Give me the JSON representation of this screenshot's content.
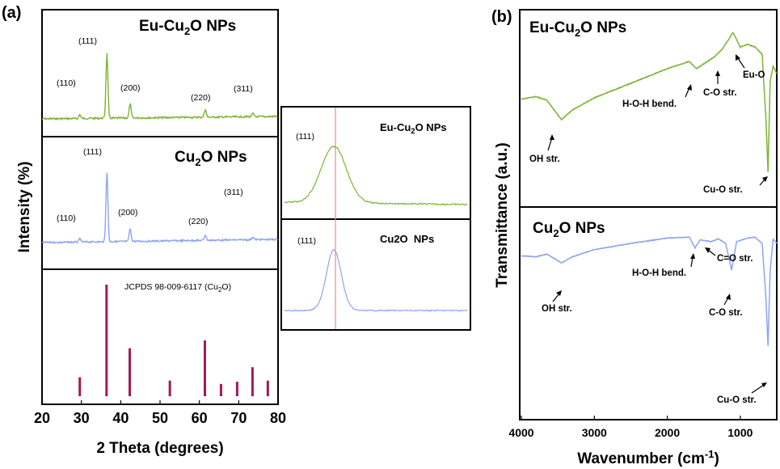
{
  "panel_labels": {
    "a": "(a)",
    "b": "(b)"
  },
  "colors": {
    "green": "#7fb336",
    "blue": "#8ea4f1",
    "stick": "#a01a5a",
    "ref_line": "#f08a8a"
  },
  "chart_data": [
    {
      "type": "line",
      "panel": "a",
      "xlabel": "2 Theta (degrees)",
      "ylabel": "Intensity (%)",
      "xlim": [
        20,
        80
      ],
      "xticks": [
        20,
        30,
        40,
        50,
        60,
        70,
        80
      ],
      "grid": false,
      "series": [
        {
          "name": "Eu-Cu2O NPs",
          "color": "#7fb336",
          "peaks": [
            [
              29.6,
              0.06
            ],
            [
              36.5,
              1.0
            ],
            [
              42.4,
              0.22
            ],
            [
              61.5,
              0.12
            ],
            [
              73.6,
              0.05
            ]
          ],
          "labels": [
            "(110)",
            "(111)",
            "(200)",
            "(220)",
            "(311)"
          ]
        },
        {
          "name": "Cu2O NPs",
          "color": "#8ea4f1",
          "peaks": [
            [
              29.6,
              0.05
            ],
            [
              36.5,
              1.0
            ],
            [
              42.4,
              0.18
            ],
            [
              61.5,
              0.08
            ],
            [
              73.6,
              0.04
            ]
          ],
          "labels": [
            "(110)",
            "(111)",
            "(200)",
            "(220)",
            "(311)"
          ]
        },
        {
          "name": "JCPDS 98-009-6117 (Cu2O)",
          "type": "stick",
          "color": "#a01a5a",
          "x": [
            29.6,
            36.4,
            42.3,
            52.5,
            61.4,
            65.5,
            69.6,
            73.5,
            77.4
          ],
          "y": [
            17,
            100,
            43,
            14,
            50,
            11,
            13,
            26,
            14
          ]
        }
      ]
    },
    {
      "type": "line",
      "panel": "a-inset",
      "series": [
        {
          "name": "Eu-Cu2O NPs",
          "label": "(111)",
          "color": "#7fb336"
        },
        {
          "name": "Cu2O  NPs",
          "label": "(111)",
          "color": "#8ea4f1"
        }
      ]
    },
    {
      "type": "line",
      "panel": "b",
      "xlabel": "Wavenumber (cm-1)",
      "ylabel": "Transmittance (a.u.)",
      "xlim": [
        4000,
        500
      ],
      "xticks": [
        4000,
        3000,
        2000,
        1000
      ],
      "grid": false,
      "series": [
        {
          "name": "Eu-Cu2O NPs",
          "color": "#7fb336",
          "x": [
            4000,
            3800,
            3650,
            3450,
            3300,
            3000,
            2500,
            2000,
            1700,
            1600,
            1500,
            1350,
            1250,
            1150,
            1100,
            1000,
            900,
            800,
            700,
            650,
            620,
            590,
            550,
            500
          ],
          "y": [
            0.45,
            0.47,
            0.44,
            0.28,
            0.36,
            0.46,
            0.58,
            0.7,
            0.76,
            0.7,
            0.74,
            0.8,
            0.86,
            0.95,
            1.0,
            0.88,
            0.9,
            0.88,
            0.82,
            0.3,
            -0.15,
            0.6,
            0.72,
            0.66
          ],
          "annotations": [
            "OH str.",
            "H-O-H bend.",
            "C-O str.",
            "Eu-O",
            "Cu-O str."
          ]
        },
        {
          "name": "Cu2O NPs",
          "color": "#8ea4f1",
          "x": [
            4000,
            3800,
            3650,
            3450,
            3300,
            3000,
            2500,
            2000,
            1700,
            1620,
            1550,
            1400,
            1300,
            1200,
            1120,
            1050,
            900,
            800,
            700,
            650,
            620,
            590,
            550,
            500
          ],
          "y": [
            0.76,
            0.75,
            0.78,
            0.68,
            0.75,
            0.83,
            0.9,
            0.96,
            0.97,
            0.85,
            0.94,
            0.92,
            0.95,
            0.9,
            0.6,
            0.92,
            0.96,
            0.97,
            0.9,
            0.3,
            -0.25,
            0.6,
            0.95,
            0.9
          ],
          "annotations": [
            "OH str.",
            "H-O-H bend.",
            "C=O str.",
            "C-O str.",
            "Cu-O str."
          ]
        }
      ]
    }
  ]
}
